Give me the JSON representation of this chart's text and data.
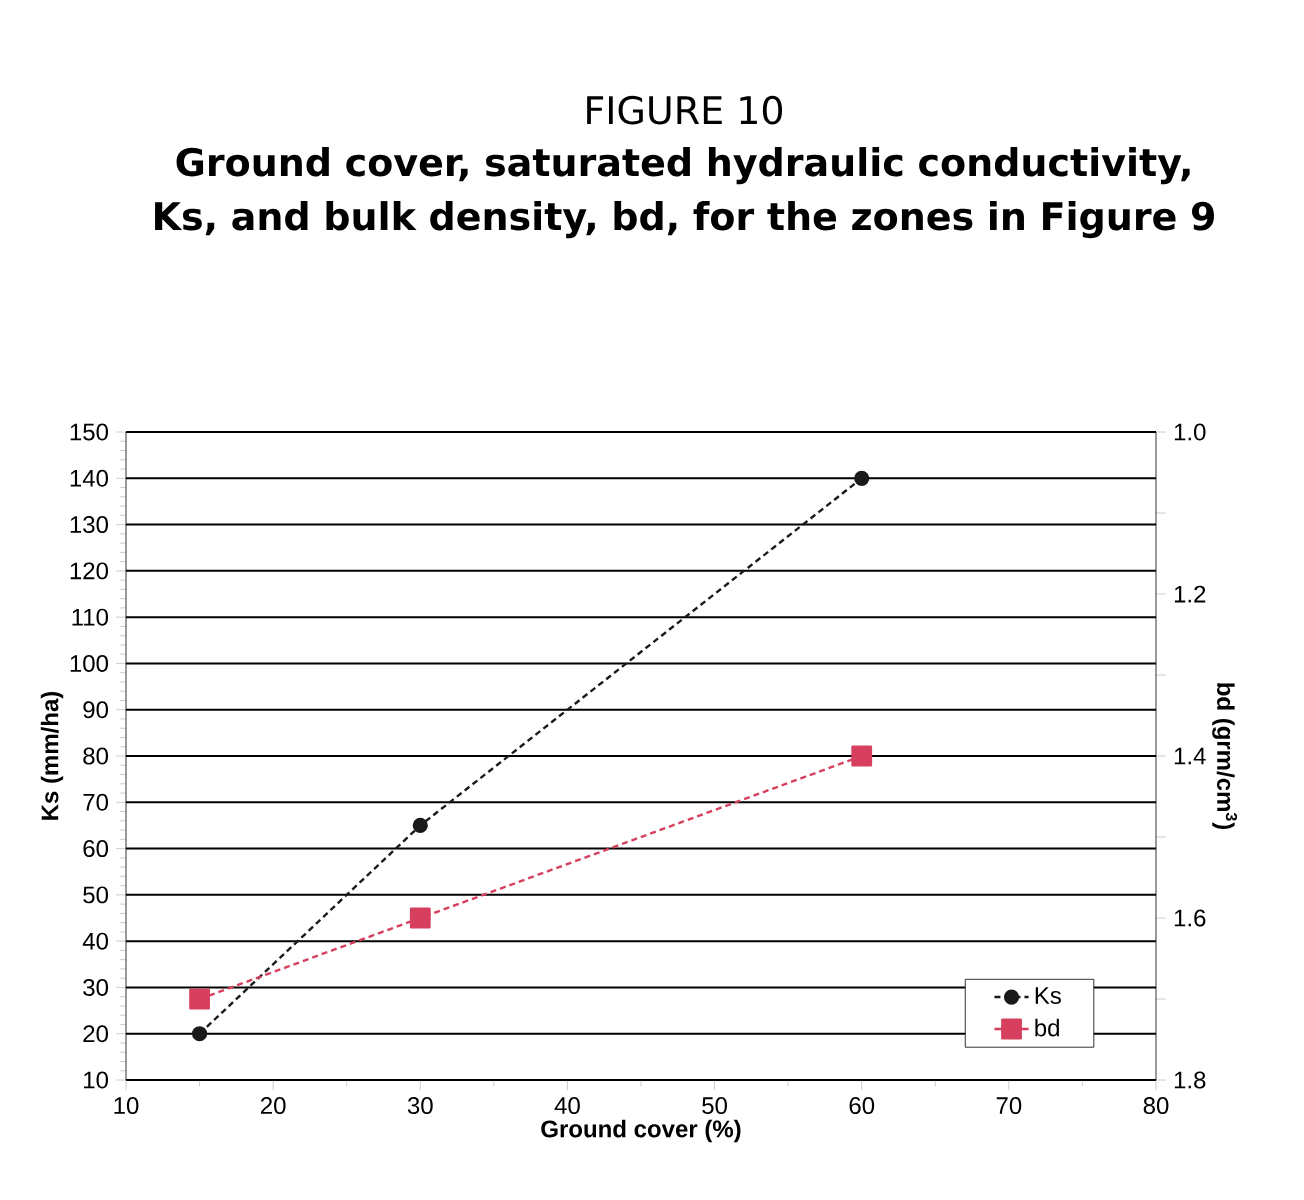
{
  "chart_data": {
    "type": "line",
    "title": "FIGURE 10",
    "subtitle": "Ground cover, saturated hydraulic conductivity, Ks, and bulk density, bd, for the zones in Figure 9",
    "xlabel": "Ground cover (%)",
    "ylabel": "Ks (mm/ha)",
    "y2label": "bd (grm/cm$^{3}$)",
    "x": [
      15,
      30,
      60
    ],
    "series": [
      {
        "name": "Ks",
        "color": "#1a1a1a",
        "marker": "circle",
        "values": [
          20,
          65,
          140
        ]
      },
      {
        "name": "bd",
        "color": "#d6405e",
        "marker": "square",
        "axis": "y2",
        "values": [
          1.7,
          1.6,
          1.4
        ]
      }
    ],
    "xlim": [
      10,
      80
    ],
    "xticks": [
      10,
      20,
      30,
      40,
      50,
      60,
      70,
      80
    ],
    "ylim": [
      10,
      150
    ],
    "yticks": [
      10,
      20,
      30,
      40,
      50,
      60,
      70,
      80,
      90,
      100,
      110,
      120,
      130,
      140,
      150
    ],
    "y2lim": [
      1.8,
      1.0
    ],
    "y2ticks": [
      {
        "value": 1.0,
        "label": "1.0"
      },
      {
        "value": 1.1,
        "label": null
      },
      1.2,
      {
        "value": 1.3,
        "label": null
      },
      1.4,
      {
        "value": 1.5,
        "label": null
      },
      1.6,
      {
        "value": 1.7,
        "label": null
      },
      1.8
    ],
    "grid": "y",
    "legend": "bottom right",
    "line_style": "dashed"
  }
}
